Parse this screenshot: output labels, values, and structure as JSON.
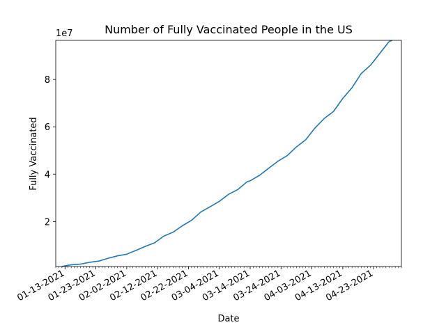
{
  "chart_data": {
    "type": "line",
    "title": "Number of Fully Vaccinated People in the US",
    "xlabel": "Date",
    "ylabel": "Fully Vaccinated",
    "y_offset_label": "1e7",
    "x_tick_labels": [
      "01-13-2021",
      "01-23-2021",
      "02-02-2021",
      "02-12-2021",
      "02-22-2021",
      "03-04-2021",
      "03-14-2021",
      "03-24-2021",
      "04-03-2021",
      "04-13-2021",
      "04-23-2021"
    ],
    "y_tick_labels": [
      "2",
      "4",
      "6",
      "8"
    ],
    "y_ticks": [
      2,
      4,
      6,
      8
    ],
    "xlim": [
      "2021-01-10",
      "2021-05-02"
    ],
    "ylim": [
      0.1,
      9.65
    ],
    "grid": false,
    "color": "#1f77b4",
    "series": [
      {
        "x": [
          "2021-01-12",
          "2021-01-13",
          "2021-01-15",
          "2021-01-18",
          "2021-01-21",
          "2021-01-24",
          "2021-01-27",
          "2021-01-30",
          "2021-02-02",
          "2021-02-05",
          "2021-02-08",
          "2021-02-11",
          "2021-02-14",
          "2021-02-17",
          "2021-02-20",
          "2021-02-23",
          "2021-02-26",
          "2021-03-01",
          "2021-03-04",
          "2021-03-07",
          "2021-03-10",
          "2021-03-13",
          "2021-03-14",
          "2021-03-17",
          "2021-03-20",
          "2021-03-23",
          "2021-03-26",
          "2021-03-29",
          "2021-04-01",
          "2021-04-04",
          "2021-04-07",
          "2021-04-10",
          "2021-04-13",
          "2021-04-16",
          "2021-04-19",
          "2021-04-22",
          "2021-04-25",
          "2021-04-28",
          "2021-04-29"
        ],
        "values": [
          0.1,
          0.13,
          0.17,
          0.2,
          0.28,
          0.33,
          0.45,
          0.55,
          0.62,
          0.78,
          0.95,
          1.1,
          1.38,
          1.55,
          1.82,
          2.05,
          2.4,
          2.62,
          2.85,
          3.15,
          3.35,
          3.68,
          3.72,
          3.95,
          4.25,
          4.55,
          4.78,
          5.15,
          5.45,
          5.95,
          6.35,
          6.65,
          7.2,
          7.65,
          8.25,
          8.6,
          9.1,
          9.6,
          9.65
        ]
      }
    ]
  }
}
